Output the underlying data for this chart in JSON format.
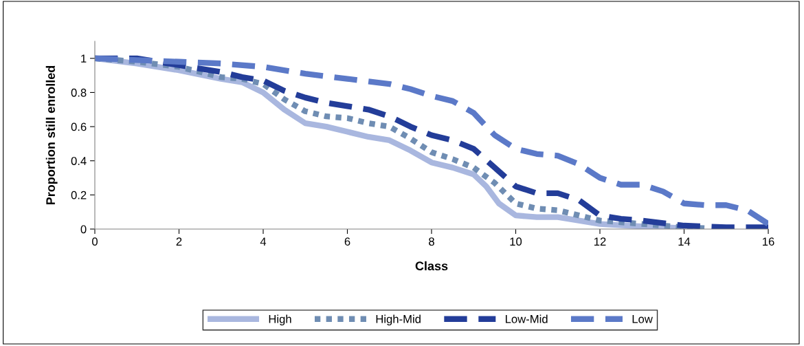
{
  "chart_data": {
    "type": "line",
    "xlabel": "Class",
    "ylabel": "Proportion still enrolled",
    "xlim": [
      0,
      16
    ],
    "xticks": [
      0,
      2,
      4,
      6,
      8,
      10,
      12,
      14,
      16
    ],
    "ylim": [
      0,
      1.1
    ],
    "yticks": [
      0,
      0.2,
      0.4,
      0.6,
      0.8,
      1
    ],
    "grid": false,
    "legend": "bottom",
    "marker": "none",
    "series": [
      {
        "name": "High",
        "color": "#a9b7df",
        "line_style": "solid",
        "x": [
          0,
          1,
          2,
          3,
          3.5,
          4,
          4.5,
          5,
          5.5,
          6,
          6.5,
          7,
          7.5,
          8,
          8.5,
          9,
          9.3,
          9.6,
          10,
          10.5,
          11,
          11.5,
          12,
          13,
          14
        ],
        "values": [
          1.0,
          0.97,
          0.93,
          0.88,
          0.86,
          0.8,
          0.7,
          0.62,
          0.6,
          0.57,
          0.54,
          0.52,
          0.46,
          0.39,
          0.36,
          0.32,
          0.25,
          0.15,
          0.08,
          0.07,
          0.07,
          0.05,
          0.03,
          0.015,
          0.005
        ]
      },
      {
        "name": "High-Mid",
        "color": "#6f8db3",
        "line_style": "dotted",
        "x": [
          0,
          1,
          2,
          3,
          3.5,
          4,
          4.5,
          5,
          5.5,
          6,
          6.5,
          7,
          7.5,
          8,
          8.5,
          9,
          9.5,
          10,
          10.5,
          11,
          11.5,
          12,
          13,
          14,
          14.5
        ],
        "values": [
          1.0,
          0.98,
          0.95,
          0.89,
          0.88,
          0.85,
          0.76,
          0.69,
          0.66,
          0.65,
          0.62,
          0.6,
          0.53,
          0.45,
          0.41,
          0.36,
          0.27,
          0.15,
          0.12,
          0.11,
          0.08,
          0.05,
          0.03,
          0.01,
          0.005
        ]
      },
      {
        "name": "Low-Mid",
        "color": "#233d99",
        "line_style": "dashed",
        "x": [
          0,
          1,
          2,
          3,
          3.5,
          4,
          4.5,
          5,
          5.5,
          6,
          6.5,
          7,
          7.5,
          8,
          8.5,
          9,
          9.5,
          10,
          10.5,
          11,
          11.5,
          12,
          12.5,
          13,
          14,
          15,
          16
        ],
        "values": [
          1.0,
          1.0,
          0.96,
          0.92,
          0.89,
          0.87,
          0.81,
          0.77,
          0.74,
          0.72,
          0.7,
          0.66,
          0.6,
          0.55,
          0.52,
          0.47,
          0.36,
          0.25,
          0.21,
          0.21,
          0.17,
          0.08,
          0.06,
          0.05,
          0.02,
          0.01,
          0.01
        ]
      },
      {
        "name": "Low",
        "color": "#5b79c8",
        "line_style": "dashed",
        "x": [
          0,
          1,
          2,
          3,
          4,
          5,
          6,
          7,
          7.5,
          8,
          8.5,
          9,
          9.5,
          10,
          10.5,
          11,
          11.5,
          12,
          12.5,
          13,
          13.5,
          14,
          14.5,
          15,
          15.5,
          16
        ],
        "values": [
          1.0,
          0.99,
          0.98,
          0.97,
          0.95,
          0.91,
          0.88,
          0.85,
          0.82,
          0.78,
          0.75,
          0.68,
          0.55,
          0.47,
          0.44,
          0.43,
          0.38,
          0.3,
          0.26,
          0.26,
          0.22,
          0.15,
          0.14,
          0.14,
          0.11,
          0.03
        ]
      }
    ]
  }
}
